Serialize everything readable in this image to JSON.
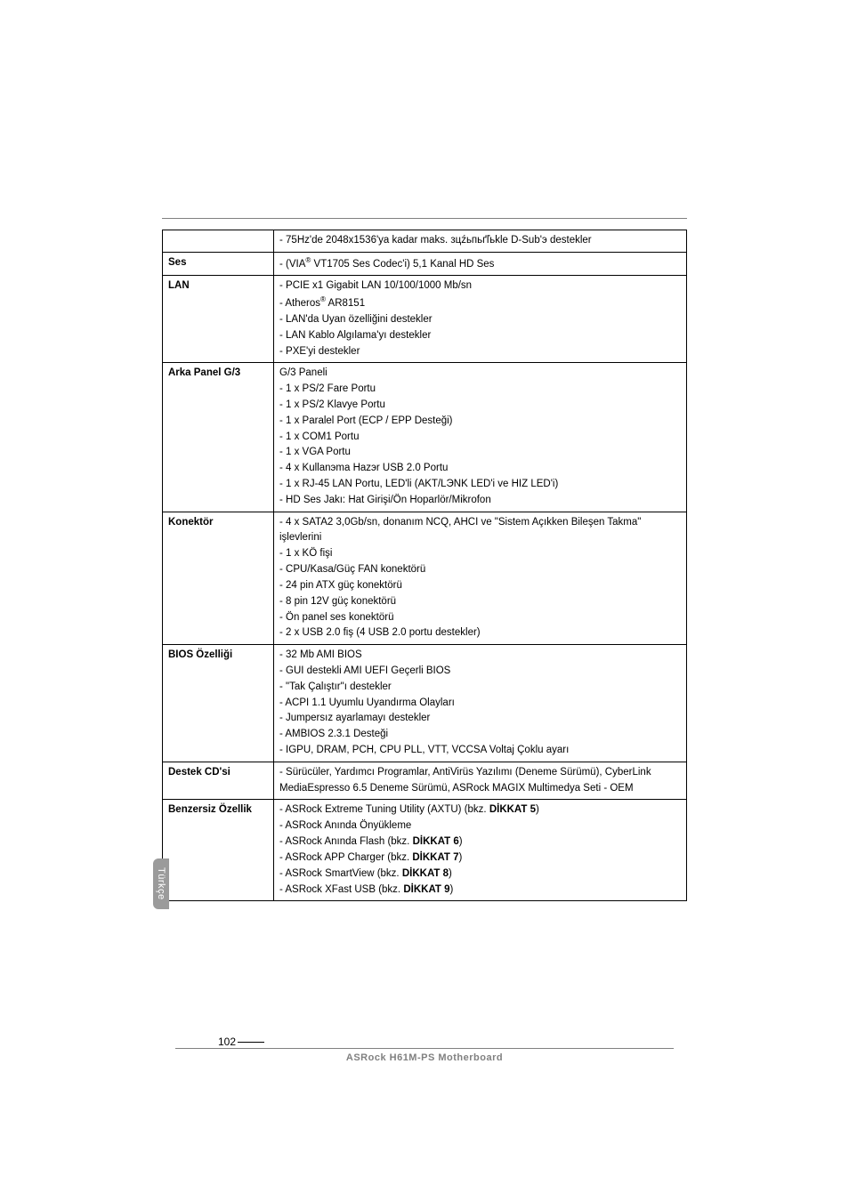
{
  "side_tab": "Türkçe",
  "page_number": "102",
  "footer": "ASRock  H61M-PS  Motherboard",
  "rows": [
    {
      "label": "",
      "items": [
        "- 75Hz'de 2048x1536'ya kadar maks. зцźьпьґľьkle D-Sub'э destekler"
      ]
    },
    {
      "label": "Ses",
      "items": [
        "- (VIA<sup>®</sup> VT1705 Ses Codec'i) 5,1 Kanal HD Ses"
      ]
    },
    {
      "label": "LAN",
      "items": [
        "- PCIE x1 Gigabit LAN 10/100/1000 Mb/sn",
        "- Atheros<sup>®</sup> AR8151",
        "- LAN'da Uyan özelliğini destekler",
        "- LAN Kablo Algılama'yı destekler",
        "- PXE'yi destekler"
      ]
    },
    {
      "label": "Arka Panel G/3",
      "items": [
        "G/3 Paneli",
        "- 1 x PS/2 Fare Portu",
        "- 1 x PS/2 Klavye Portu",
        "- 1 x Paralel Port (ECP / EPP Desteği)",
        "- 1 x COM1 Portu",
        "- 1 x VGA Portu",
        "- 4 x Kullanэma Hazэr USB 2.0 Portu",
        "- 1 x RJ-45 LAN Portu, LED'li (AKT/LЭNK LED'i ve HIZ LED'i)",
        "- HD Ses Jakı: Hat Girişi/Ön Hoparlör/Mikrofon"
      ]
    },
    {
      "label": "Konektör",
      "items": [
        "- 4 x SATA2 3,0Gb/sn, donanım NCQ, AHCI ve \"Sistem Açıkken Bileşen Takma\" işlevlerini",
        "- 1 x KÖ fişi",
        "- CPU/Kasa/Güç FAN konektörü",
        "- 24 pin ATX güç konektörü",
        "- 8 pin 12V güç konektörü",
        "- Ön panel ses konektörü",
        "- 2 x USB 2.0 fiş (4 USB 2.0 portu destekler)"
      ]
    },
    {
      "label": "BIOS Özelliği",
      "items": [
        "- 32 Mb AMI BIOS",
        "- GUI destekli AMI UEFI Geçerli BIOS",
        "- \"Tak Çalıştır\"ı destekler",
        "- ACPI 1.1 Uyumlu Uyandırma Olayları",
        "- Jumpersız ayarlamayı destekler",
        "- AMBIOS 2.3.1 Desteği",
        "- IGPU, DRAM, PCH, CPU PLL, VTT, VCCSA Voltaj Çoklu ayarı"
      ]
    },
    {
      "label": "Destek CD'si",
      "items": [
        "- Sürücüler, Yardımcı Programlar, AntiVirüs Yazılımı (Deneme Sürümü), CyberLink MediaEspresso 6.5 Deneme Sürümü, ASRock MAGIX Multimedya Seti - OEM"
      ]
    },
    {
      "label": "Benzersiz Özellik",
      "items": [
        "- ASRock Extreme Tuning Utility (AXTU) (bkz. <span class=\"bold\">DİKKAT 5</span>)",
        "- ASRock Anında Önyükleme",
        "- ASRock Anında Flash (bkz. <span class=\"bold\">DİKKAT 6</span>)",
        "- ASRock APP Charger (bkz. <span class=\"bold\">DİKKAT 7</span>)",
        "- ASRock SmartView (bkz. <span class=\"bold\">DİKKAT 8</span>)",
        "- ASRock XFast USB (bkz. <span class=\"bold\">DİKKAT 9</span>)"
      ]
    }
  ]
}
